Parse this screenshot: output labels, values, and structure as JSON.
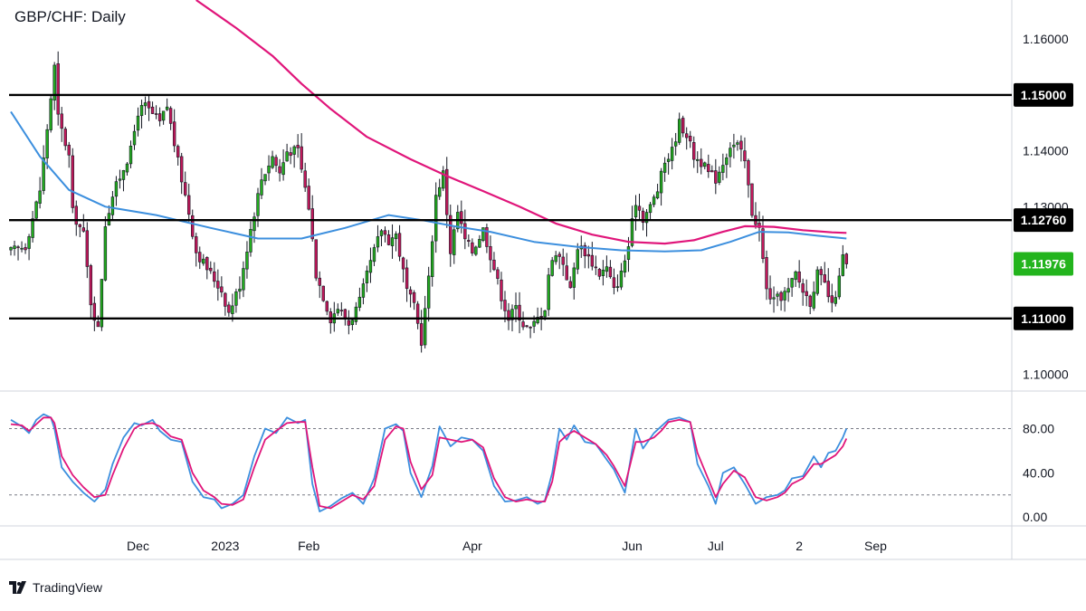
{
  "chart_title": "GBP/CHF: Daily",
  "brand": {
    "name": "TradingView"
  },
  "colors": {
    "bullish": "#22ab1e",
    "bearish": "#c2185b",
    "ma_short": "#3c8fde",
    "ma_long": "#e0157a",
    "stoch_k": "#3c8fde",
    "stoch_d": "#e0157a",
    "level_line": "#000000",
    "price_tag_current": "#23b41d"
  },
  "chart_data": {
    "type": "candlestick",
    "timeframe": "Daily",
    "symbol": "GBP/CHF",
    "price_axis": {
      "ylim": [
        1.097,
        1.167
      ],
      "tick_labels": [
        "1.16000",
        "1.15000",
        "1.14000",
        "1.13000",
        "1.12000",
        "1.11000",
        "1.10000"
      ],
      "tick_values": [
        1.16,
        1.15,
        1.14,
        1.13,
        1.12,
        1.11,
        1.1
      ]
    },
    "x_axis": {
      "labels": [
        {
          "text": "Dec",
          "index": 35
        },
        {
          "text": "2023",
          "index": 59
        },
        {
          "text": "Feb",
          "index": 82
        },
        {
          "text": "Apr",
          "index": 127
        },
        {
          "text": "Jun",
          "index": 171
        },
        {
          "text": "Jul",
          "index": 194
        },
        {
          "text": "2",
          "index": 217
        },
        {
          "text": "Sep",
          "index": 238
        }
      ],
      "total_slots": 276,
      "bars_drawn": 230
    },
    "horizontal_levels": [
      {
        "value": 1.15,
        "label": "1.15000"
      },
      {
        "value": 1.1276,
        "label": "1.12760"
      },
      {
        "value": 1.11,
        "label": "1.11000"
      }
    ],
    "current_price": {
      "value": 1.11976,
      "label": "1.11976"
    },
    "anchors": [
      [
        0,
        1.122
      ],
      [
        4,
        1.123
      ],
      [
        8,
        1.133
      ],
      [
        12,
        1.155
      ],
      [
        13,
        1.146
      ],
      [
        16,
        1.139
      ],
      [
        17,
        1.129
      ],
      [
        20,
        1.125
      ],
      [
        22,
        1.113
      ],
      [
        24,
        1.108
      ],
      [
        26,
        1.127
      ],
      [
        28,
        1.132
      ],
      [
        31,
        1.137
      ],
      [
        33,
        1.14
      ],
      [
        35,
        1.147
      ],
      [
        37,
        1.148
      ],
      [
        41,
        1.145
      ],
      [
        43,
        1.148
      ],
      [
        46,
        1.138
      ],
      [
        49,
        1.129
      ],
      [
        51,
        1.122
      ],
      [
        55,
        1.118
      ],
      [
        58,
        1.115
      ],
      [
        60,
        1.111
      ],
      [
        63,
        1.116
      ],
      [
        66,
        1.126
      ],
      [
        69,
        1.135
      ],
      [
        72,
        1.139
      ],
      [
        74,
        1.136
      ],
      [
        76,
        1.14
      ],
      [
        79,
        1.14
      ],
      [
        82,
        1.13
      ],
      [
        84,
        1.118
      ],
      [
        86,
        1.114
      ],
      [
        88,
        1.11
      ],
      [
        90,
        1.112
      ],
      [
        93,
        1.109
      ],
      [
        96,
        1.113
      ],
      [
        99,
        1.12
      ],
      [
        102,
        1.126
      ],
      [
        104,
        1.124
      ],
      [
        106,
        1.125
      ],
      [
        109,
        1.115
      ],
      [
        111,
        1.112
      ],
      [
        113,
        1.106
      ],
      [
        115,
        1.117
      ],
      [
        117,
        1.132
      ],
      [
        119,
        1.136
      ],
      [
        121,
        1.122
      ],
      [
        123,
        1.129
      ],
      [
        125,
        1.124
      ],
      [
        127,
        1.122
      ],
      [
        130,
        1.126
      ],
      [
        133,
        1.119
      ],
      [
        135,
        1.114
      ],
      [
        137,
        1.11
      ],
      [
        139,
        1.112
      ],
      [
        141,
        1.109
      ],
      [
        143,
        1.108
      ],
      [
        145,
        1.11
      ],
      [
        147,
        1.112
      ],
      [
        148,
        1.118
      ],
      [
        150,
        1.122
      ],
      [
        152,
        1.12
      ],
      [
        154,
        1.115
      ],
      [
        156,
        1.123
      ],
      [
        158,
        1.122
      ],
      [
        160,
        1.12
      ],
      [
        162,
        1.118
      ],
      [
        164,
        1.119
      ],
      [
        166,
        1.115
      ],
      [
        168,
        1.118
      ],
      [
        170,
        1.123
      ],
      [
        172,
        1.131
      ],
      [
        174,
        1.128
      ],
      [
        176,
        1.13
      ],
      [
        178,
        1.133
      ],
      [
        180,
        1.138
      ],
      [
        182,
        1.14
      ],
      [
        184,
        1.145
      ],
      [
        186,
        1.143
      ],
      [
        188,
        1.139
      ],
      [
        190,
        1.138
      ],
      [
        192,
        1.136
      ],
      [
        194,
        1.135
      ],
      [
        196,
        1.138
      ],
      [
        198,
        1.141
      ],
      [
        200,
        1.141
      ],
      [
        202,
        1.138
      ],
      [
        204,
        1.129
      ],
      [
        206,
        1.126
      ],
      [
        208,
        1.115
      ],
      [
        210,
        1.113
      ],
      [
        212,
        1.114
      ],
      [
        214,
        1.115
      ],
      [
        216,
        1.118
      ],
      [
        218,
        1.115
      ],
      [
        220,
        1.113
      ],
      [
        222,
        1.118
      ],
      [
        224,
        1.116
      ],
      [
        226,
        1.112
      ],
      [
        228,
        1.117
      ],
      [
        229,
        1.121
      ],
      [
        230,
        1.1198
      ]
    ],
    "ma_short": {
      "name": "Short moving average",
      "points": [
        [
          0,
          1.147
        ],
        [
          8,
          1.139
        ],
        [
          16,
          1.133
        ],
        [
          26,
          1.13
        ],
        [
          40,
          1.1285
        ],
        [
          55,
          1.1262
        ],
        [
          68,
          1.1243
        ],
        [
          80,
          1.1243
        ],
        [
          92,
          1.1262
        ],
        [
          104,
          1.1285
        ],
        [
          114,
          1.1275
        ],
        [
          122,
          1.1265
        ],
        [
          132,
          1.1255
        ],
        [
          144,
          1.1237
        ],
        [
          156,
          1.1228
        ],
        [
          168,
          1.1222
        ],
        [
          180,
          1.122
        ],
        [
          190,
          1.1222
        ],
        [
          198,
          1.1237
        ],
        [
          206,
          1.1255
        ],
        [
          214,
          1.1254
        ],
        [
          222,
          1.1248
        ],
        [
          230,
          1.1243
        ]
      ]
    },
    "ma_long": {
      "name": "Long moving average",
      "points": [
        [
          51,
          1.167
        ],
        [
          62,
          1.162
        ],
        [
          72,
          1.157
        ],
        [
          80,
          1.152
        ],
        [
          88,
          1.1475
        ],
        [
          98,
          1.1425
        ],
        [
          110,
          1.1385
        ],
        [
          120,
          1.1355
        ],
        [
          130,
          1.1328
        ],
        [
          140,
          1.13
        ],
        [
          150,
          1.127
        ],
        [
          160,
          1.125
        ],
        [
          170,
          1.1237
        ],
        [
          180,
          1.1234
        ],
        [
          188,
          1.124
        ],
        [
          196,
          1.1255
        ],
        [
          202,
          1.1265
        ],
        [
          210,
          1.1264
        ],
        [
          218,
          1.1258
        ],
        [
          226,
          1.1254
        ],
        [
          230,
          1.1253
        ]
      ]
    },
    "stochastic": {
      "ylim": [
        -8,
        114
      ],
      "tick_labels": [
        "80.00",
        "40.00",
        "0.00"
      ],
      "tick_values": [
        80,
        40,
        0
      ],
      "bands": [
        80,
        20
      ],
      "k_points": [
        [
          0,
          88
        ],
        [
          3,
          82
        ],
        [
          5,
          76
        ],
        [
          7,
          88
        ],
        [
          9,
          93
        ],
        [
          11,
          90
        ],
        [
          12,
          80
        ],
        [
          14,
          45
        ],
        [
          17,
          32
        ],
        [
          20,
          22
        ],
        [
          23,
          14
        ],
        [
          26,
          25
        ],
        [
          28,
          48
        ],
        [
          31,
          72
        ],
        [
          34,
          85
        ],
        [
          36,
          83
        ],
        [
          39,
          88
        ],
        [
          41,
          78
        ],
        [
          44,
          70
        ],
        [
          47,
          68
        ],
        [
          50,
          32
        ],
        [
          53,
          18
        ],
        [
          56,
          16
        ],
        [
          58,
          8
        ],
        [
          61,
          12
        ],
        [
          64,
          20
        ],
        [
          67,
          55
        ],
        [
          70,
          80
        ],
        [
          73,
          76
        ],
        [
          76,
          90
        ],
        [
          79,
          85
        ],
        [
          81,
          88
        ],
        [
          83,
          30
        ],
        [
          85,
          5
        ],
        [
          88,
          10
        ],
        [
          91,
          17
        ],
        [
          94,
          22
        ],
        [
          97,
          12
        ],
        [
          100,
          35
        ],
        [
          103,
          80
        ],
        [
          106,
          84
        ],
        [
          108,
          78
        ],
        [
          110,
          40
        ],
        [
          113,
          18
        ],
        [
          116,
          46
        ],
        [
          118,
          82
        ],
        [
          121,
          64
        ],
        [
          124,
          72
        ],
        [
          127,
          70
        ],
        [
          130,
          60
        ],
        [
          133,
          28
        ],
        [
          136,
          14
        ],
        [
          139,
          15
        ],
        [
          142,
          18
        ],
        [
          145,
          12
        ],
        [
          147,
          15
        ],
        [
          149,
          40
        ],
        [
          151,
          80
        ],
        [
          153,
          70
        ],
        [
          155,
          83
        ],
        [
          158,
          68
        ],
        [
          161,
          66
        ],
        [
          164,
          52
        ],
        [
          166,
          43
        ],
        [
          169,
          22
        ],
        [
          172,
          80
        ],
        [
          174,
          62
        ],
        [
          177,
          76
        ],
        [
          179,
          82
        ],
        [
          181,
          88
        ],
        [
          184,
          90
        ],
        [
          187,
          86
        ],
        [
          189,
          48
        ],
        [
          192,
          28
        ],
        [
          194,
          12
        ],
        [
          196,
          40
        ],
        [
          199,
          45
        ],
        [
          202,
          30
        ],
        [
          205,
          12
        ],
        [
          208,
          18
        ],
        [
          211,
          20
        ],
        [
          213,
          24
        ],
        [
          215,
          35
        ],
        [
          218,
          37
        ],
        [
          221,
          55
        ],
        [
          223,
          45
        ],
        [
          225,
          58
        ],
        [
          227,
          60
        ],
        [
          229,
          72
        ],
        [
          230,
          80
        ]
      ],
      "d_points": [
        [
          0,
          84
        ],
        [
          3,
          83
        ],
        [
          5,
          78
        ],
        [
          7,
          84
        ],
        [
          9,
          90
        ],
        [
          11,
          90
        ],
        [
          12,
          85
        ],
        [
          14,
          55
        ],
        [
          17,
          38
        ],
        [
          20,
          27
        ],
        [
          23,
          18
        ],
        [
          26,
          20
        ],
        [
          28,
          38
        ],
        [
          31,
          62
        ],
        [
          34,
          80
        ],
        [
          36,
          84
        ],
        [
          39,
          85
        ],
        [
          41,
          82
        ],
        [
          44,
          73
        ],
        [
          47,
          70
        ],
        [
          50,
          40
        ],
        [
          53,
          24
        ],
        [
          56,
          18
        ],
        [
          58,
          12
        ],
        [
          61,
          11
        ],
        [
          64,
          16
        ],
        [
          67,
          45
        ],
        [
          70,
          70
        ],
        [
          73,
          78
        ],
        [
          76,
          85
        ],
        [
          79,
          86
        ],
        [
          81,
          86
        ],
        [
          83,
          45
        ],
        [
          85,
          10
        ],
        [
          88,
          8
        ],
        [
          91,
          14
        ],
        [
          94,
          20
        ],
        [
          97,
          16
        ],
        [
          100,
          28
        ],
        [
          103,
          70
        ],
        [
          106,
          82
        ],
        [
          108,
          80
        ],
        [
          110,
          50
        ],
        [
          113,
          25
        ],
        [
          116,
          38
        ],
        [
          118,
          72
        ],
        [
          121,
          70
        ],
        [
          124,
          68
        ],
        [
          127,
          70
        ],
        [
          130,
          63
        ],
        [
          133,
          35
        ],
        [
          136,
          18
        ],
        [
          139,
          14
        ],
        [
          142,
          16
        ],
        [
          145,
          14
        ],
        [
          147,
          14
        ],
        [
          149,
          32
        ],
        [
          151,
          68
        ],
        [
          153,
          74
        ],
        [
          155,
          78
        ],
        [
          158,
          72
        ],
        [
          161,
          66
        ],
        [
          164,
          56
        ],
        [
          166,
          46
        ],
        [
          169,
          28
        ],
        [
          172,
          68
        ],
        [
          174,
          68
        ],
        [
          177,
          72
        ],
        [
          179,
          78
        ],
        [
          181,
          86
        ],
        [
          184,
          88
        ],
        [
          187,
          86
        ],
        [
          189,
          58
        ],
        [
          192,
          34
        ],
        [
          194,
          18
        ],
        [
          196,
          30
        ],
        [
          199,
          42
        ],
        [
          202,
          36
        ],
        [
          205,
          18
        ],
        [
          208,
          15
        ],
        [
          211,
          18
        ],
        [
          213,
          22
        ],
        [
          215,
          30
        ],
        [
          218,
          35
        ],
        [
          221,
          48
        ],
        [
          223,
          48
        ],
        [
          225,
          52
        ],
        [
          227,
          56
        ],
        [
          229,
          64
        ],
        [
          230,
          71
        ]
      ]
    }
  }
}
